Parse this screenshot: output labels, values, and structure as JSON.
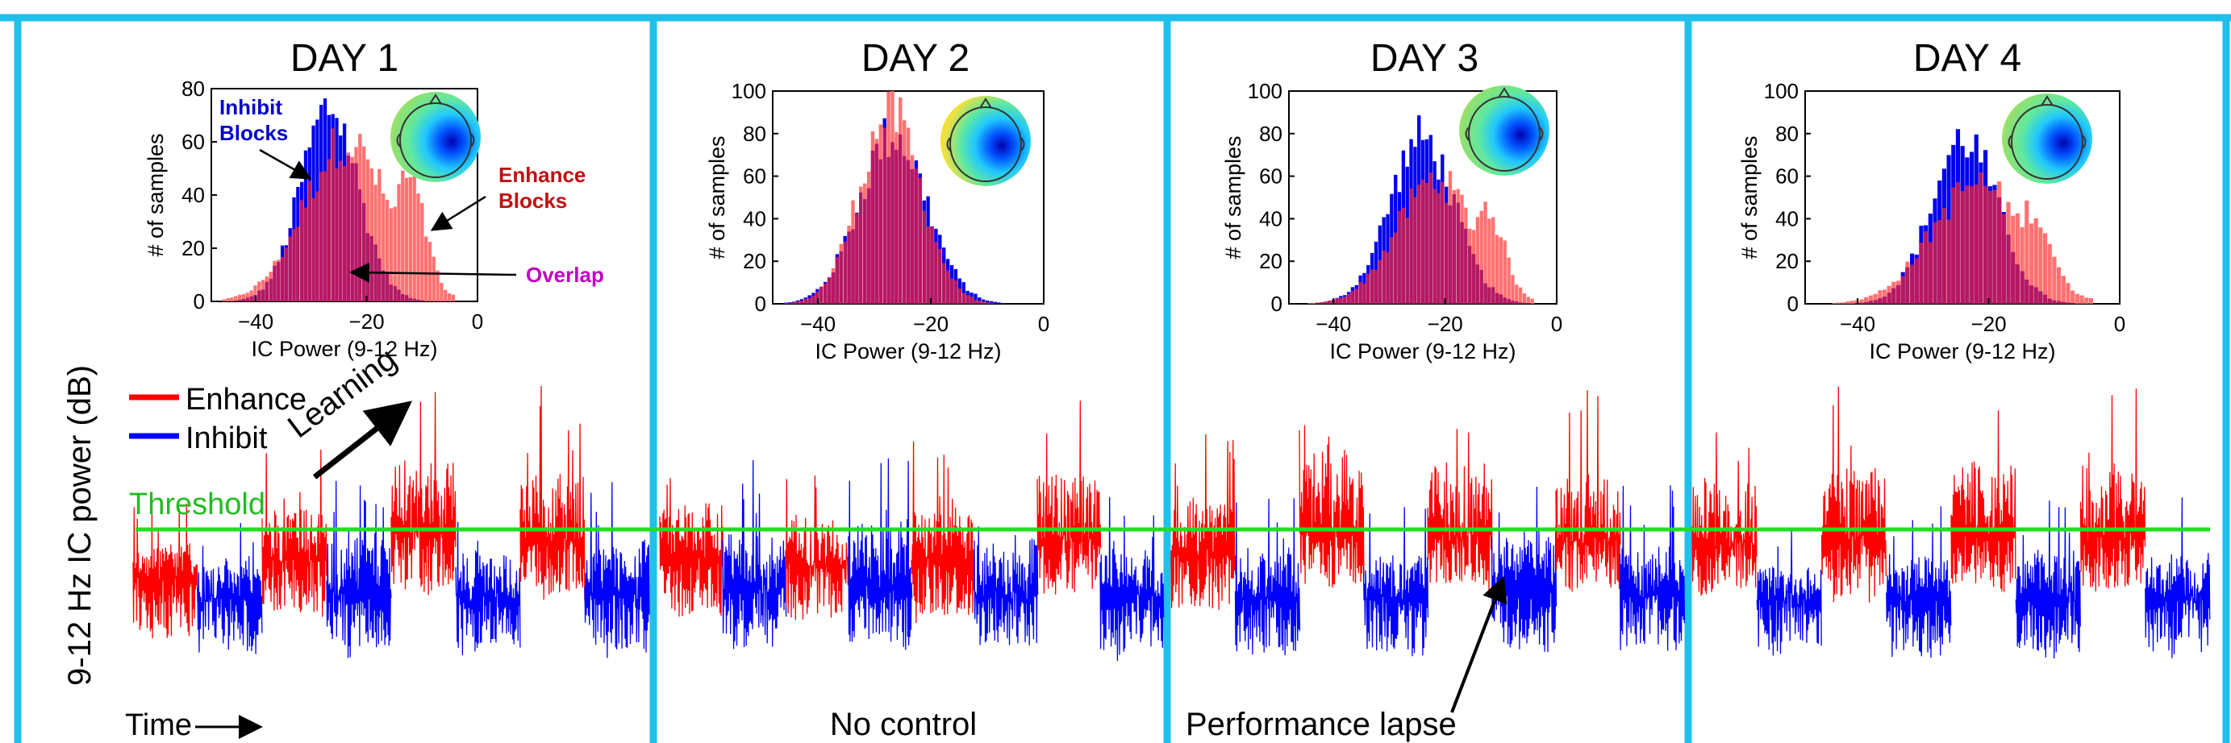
{
  "colors": {
    "frame": "#1fc0ea",
    "enhance": "#ff0000",
    "inhibit": "#0000ff",
    "threshold": "#22dd22",
    "hist_inhibit": "#0000ee",
    "hist_enhance": "#ff6a6a",
    "hist_overlap": "#b01060",
    "annot_inhibit": "#0000cc",
    "annot_enhance": "#c01010",
    "annot_overlap": "#c000c0"
  },
  "chart_data": [
    {
      "type": "histogram",
      "title": "DAY 1",
      "xlabel": "IC Power (9-12 Hz)",
      "ylabel": "# of samples",
      "xlim": [
        -48,
        0
      ],
      "xticks": [
        "-40",
        "-20",
        "0"
      ],
      "ylim": [
        0,
        80
      ],
      "yticks": [
        "0",
        "20",
        "40",
        "60",
        "80"
      ],
      "series": [
        {
          "name": "Inhibit Blocks",
          "center": -27,
          "spread": 5.2,
          "peak": 75
        },
        {
          "name": "Enhance Blocks",
          "center": -24,
          "spread": 7.5,
          "peak": 62,
          "secondary_center": -13,
          "secondary_peak": 48
        }
      ],
      "annotations": {
        "inhibit": "Inhibit Blocks",
        "enhance": "Enhance Blocks",
        "overlap": "Overlap"
      }
    },
    {
      "type": "histogram",
      "title": "DAY 2",
      "xlabel": "IC Power (9-12 Hz)",
      "ylabel": "# of samples",
      "xlim": [
        -48,
        0
      ],
      "xticks": [
        "-40",
        "-20",
        "0"
      ],
      "ylim": [
        0,
        100
      ],
      "yticks": [
        "0",
        "20",
        "40",
        "60",
        "80",
        "100"
      ],
      "series": [
        {
          "name": "Inhibit",
          "center": -27,
          "spread": 6.0,
          "peak": 82
        },
        {
          "name": "Enhance",
          "center": -27.5,
          "spread": 5.5,
          "peak": 92
        }
      ]
    },
    {
      "type": "histogram",
      "title": "DAY 3",
      "xlabel": "IC Power (9-12 Hz)",
      "ylabel": "# of samples",
      "xlim": [
        -48,
        0
      ],
      "xticks": [
        "-40",
        "-20",
        "0"
      ],
      "ylim": [
        0,
        100
      ],
      "yticks": [
        "0",
        "20",
        "40",
        "60",
        "80",
        "100"
      ],
      "series": [
        {
          "name": "Inhibit",
          "center": -24.5,
          "spread": 5.8,
          "peak": 80
        },
        {
          "name": "Enhance",
          "center": -22,
          "spread": 7.0,
          "peak": 60,
          "secondary_center": -13,
          "secondary_peak": 47
        }
      ]
    },
    {
      "type": "histogram",
      "title": "DAY 4",
      "xlabel": "IC Power (9-12 Hz)",
      "ylabel": "# of samples",
      "xlim": [
        -48,
        0
      ],
      "xticks": [
        "-40",
        "-20",
        "0"
      ],
      "ylim": [
        0,
        100
      ],
      "yticks": [
        "0",
        "20",
        "40",
        "60",
        "80",
        "100"
      ],
      "series": [
        {
          "name": "Inhibit",
          "center": -24,
          "spread": 5.0,
          "peak": 80
        },
        {
          "name": "Enhance",
          "center": -22,
          "spread": 7.0,
          "peak": 58,
          "secondary_center": -14,
          "secondary_peak": 46
        }
      ]
    },
    {
      "type": "line",
      "ylabel": "9-12 Hz IC power (dB)",
      "xlabel": "Time",
      "legend": [
        "Enhance",
        "Inhibit"
      ],
      "threshold_label": "Threshold",
      "threshold_level": 0.5,
      "annotations": {
        "learning": "Learning",
        "no_control": "No control",
        "lapse": "Performance lapse"
      },
      "blocks_per_day": [
        [
          "enhance",
          "inhibit",
          "enhance",
          "inhibit",
          "enhance",
          "inhibit",
          "enhance",
          "inhibit"
        ],
        [
          "enhance",
          "inhibit",
          "enhance",
          "inhibit",
          "enhance",
          "inhibit",
          "enhance",
          "inhibit"
        ],
        [
          "enhance",
          "inhibit",
          "enhance",
          "inhibit",
          "enhance",
          "inhibit",
          "enhance",
          "inhibit"
        ],
        [
          "enhance",
          "inhibit",
          "enhance",
          "inhibit",
          "enhance",
          "inhibit",
          "enhance",
          "inhibit"
        ]
      ]
    }
  ]
}
